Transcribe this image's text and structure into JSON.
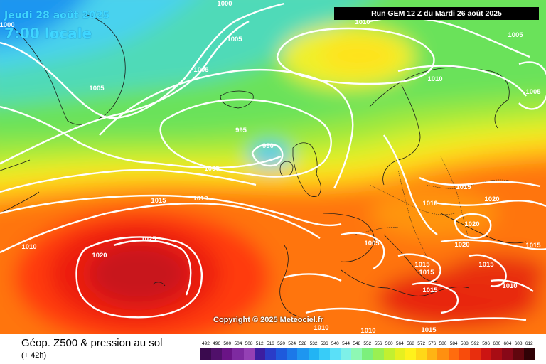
{
  "header": {
    "date": "Jeudi 28 août 2025",
    "local_time": "7:00 locale",
    "run": "Run GEM 12 Z du Mardi 26 août 2025"
  },
  "copyright": "Copyright © 2025 Meteociel.fr",
  "footer": {
    "product": "Géop. Z500 & pression au sol",
    "lead": "(+ 42h)"
  },
  "scale": {
    "values": [
      "492",
      "496",
      "500",
      "504",
      "508",
      "512",
      "516",
      "520",
      "524",
      "528",
      "532",
      "536",
      "540",
      "544",
      "548",
      "552",
      "556",
      "560",
      "564",
      "568",
      "572",
      "576",
      "580",
      "584",
      "588",
      "592",
      "596",
      "600",
      "604",
      "608",
      "612"
    ],
    "colors": [
      "#3a0a4e",
      "#50106a",
      "#6a1486",
      "#7e2aa0",
      "#9440b4",
      "#3c1ea0",
      "#2a3cc8",
      "#1e5adc",
      "#1c78e8",
      "#1e96f0",
      "#22b4f4",
      "#38ccf8",
      "#5ae0f8",
      "#7ef0e8",
      "#8ef8b4",
      "#7cf07c",
      "#9af052",
      "#c2f030",
      "#e6f020",
      "#fff21c",
      "#ffd818",
      "#ffb414",
      "#ff9010",
      "#ff6c0e",
      "#f84c0c",
      "#e82e0e",
      "#cc1412",
      "#a80c14",
      "#880818",
      "#60060e",
      "#300206"
    ]
  },
  "isobars": [
    {
      "value": "1000"
    },
    {
      "value": "1000"
    },
    {
      "value": "1005"
    },
    {
      "value": "1005"
    },
    {
      "value": "1010"
    },
    {
      "value": "1005"
    },
    {
      "value": "1005"
    },
    {
      "value": "1010"
    },
    {
      "value": "1005"
    },
    {
      "value": "995"
    },
    {
      "value": "990"
    },
    {
      "value": "1000"
    },
    {
      "value": "1010"
    },
    {
      "value": "1015"
    },
    {
      "value": "1015"
    },
    {
      "value": "1020"
    },
    {
      "value": "1010"
    },
    {
      "value": "1020"
    },
    {
      "value": "1010"
    },
    {
      "value": "1020"
    },
    {
      "value": "1025"
    },
    {
      "value": "1005"
    },
    {
      "value": "1015"
    },
    {
      "value": "1015"
    },
    {
      "value": "1015"
    },
    {
      "value": "1015"
    },
    {
      "value": "1010"
    },
    {
      "value": "1015"
    },
    {
      "value": "1010"
    },
    {
      "value": "1010"
    },
    {
      "value": "1015"
    },
    {
      "value": "1020"
    }
  ]
}
